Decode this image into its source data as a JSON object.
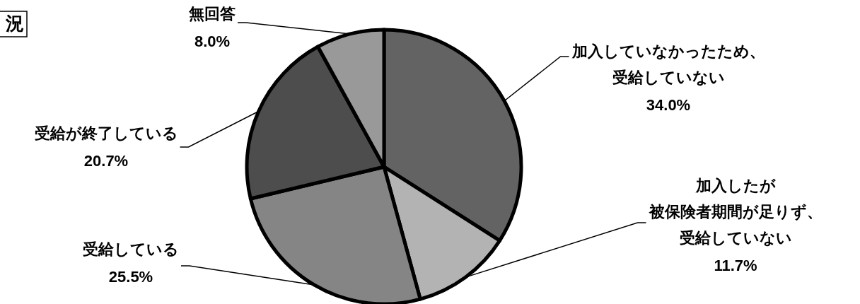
{
  "chart_data": {
    "type": "pie",
    "title": "況",
    "categories": [
      "加入していなかったため、受給していない",
      "加入したが被保険者期間が足りず、受給していない",
      "受給している",
      "受給が終了している",
      "無回答"
    ],
    "values": [
      34.0,
      11.7,
      25.5,
      20.7,
      8.0
    ],
    "value_labels": [
      "34.0%",
      "11.7%",
      "25.5%",
      "20.7%",
      "8.0%"
    ],
    "colors": [
      "#636363",
      "#b3b3b3",
      "#858585",
      "#4d4d4d",
      "#999999"
    ]
  }
}
